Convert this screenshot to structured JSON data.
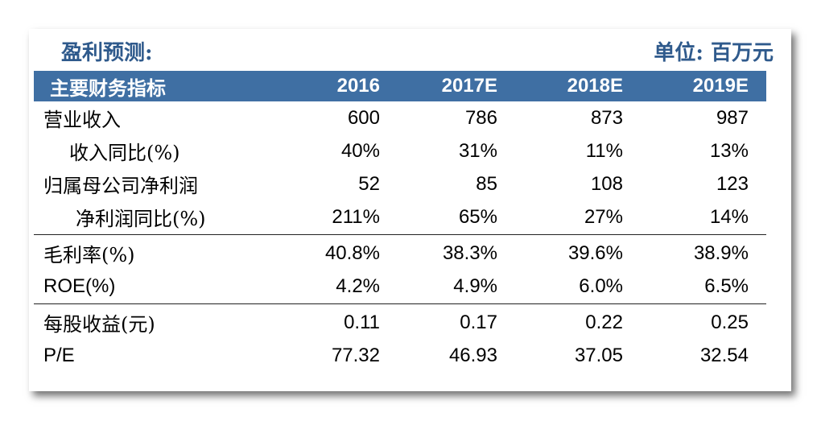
{
  "title": "盈利预测:",
  "unit": "单位: 百万元",
  "colors": {
    "header_bg": "#3f6fa3",
    "title_text": "#2f5a8c"
  },
  "table": {
    "header": {
      "label": "主要财务指标",
      "columns": [
        "2016",
        "2017E",
        "2018E",
        "2019E"
      ]
    },
    "groups": [
      {
        "rows": [
          {
            "label": "营业收入",
            "values": [
              "600",
              "786",
              "873",
              "987"
            ]
          },
          {
            "label": "收入同比(%)",
            "values": [
              "40%",
              "31%",
              "11%",
              "13%"
            ]
          },
          {
            "label": "归属母公司净利润",
            "values": [
              "52",
              "85",
              "108",
              "123"
            ]
          },
          {
            "label": "净利润同比(%)",
            "values": [
              "211%",
              "65%",
              "27%",
              "14%"
            ]
          }
        ]
      },
      {
        "rows": [
          {
            "label": "毛利率(%)",
            "values": [
              "40.8%",
              "38.3%",
              "39.6%",
              "38.9%"
            ]
          },
          {
            "label": "ROE(%)",
            "values": [
              "4.2%",
              "4.9%",
              "6.0%",
              "6.5%"
            ]
          }
        ]
      },
      {
        "rows": [
          {
            "label": "每股收益(元)",
            "values": [
              "0.11",
              "0.17",
              "0.22",
              "0.25"
            ]
          },
          {
            "label": "P/E",
            "values": [
              "77.32",
              "46.93",
              "37.05",
              "32.54"
            ]
          }
        ]
      }
    ]
  }
}
